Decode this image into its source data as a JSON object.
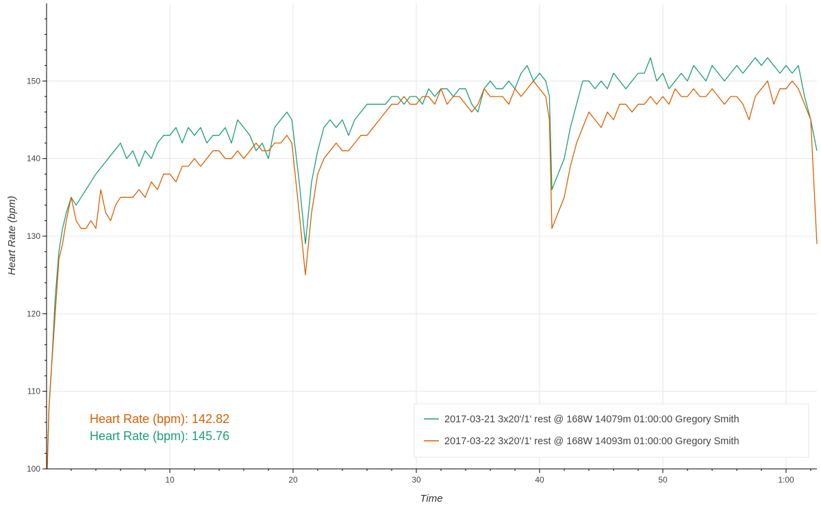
{
  "chart_data": {
    "type": "line",
    "xlabel": "Time",
    "ylabel": "Heart Rate (bpm)",
    "xlim": [
      0,
      62.5
    ],
    "ylim": [
      100,
      160
    ],
    "x_ticks": [
      {
        "value": 10,
        "label": "10"
      },
      {
        "value": 20,
        "label": "20"
      },
      {
        "value": 30,
        "label": "30"
      },
      {
        "value": 40,
        "label": "40"
      },
      {
        "value": 50,
        "label": "50"
      },
      {
        "value": 60,
        "label": "1:00"
      }
    ],
    "y_ticks": [
      {
        "value": 100,
        "label": "100"
      },
      {
        "value": 110,
        "label": "110"
      },
      {
        "value": 120,
        "label": "120"
      },
      {
        "value": 130,
        "label": "130"
      },
      {
        "value": 140,
        "label": "140"
      },
      {
        "value": 150,
        "label": "150"
      }
    ],
    "grid": true,
    "legend_position": "bottom-right",
    "series": [
      {
        "name": "2017-03-21 3x20'/1' rest @ 168W 14079m 01:00:00 Gregory Smith",
        "color": "#1b9e77",
        "average_label": "Heart Rate (bpm): 145.76",
        "points": [
          [
            0.05,
            100
          ],
          [
            0.2,
            108
          ],
          [
            0.4,
            113
          ],
          [
            0.7,
            122
          ],
          [
            1.0,
            128
          ],
          [
            1.3,
            131
          ],
          [
            1.6,
            133
          ],
          [
            2.0,
            135
          ],
          [
            2.4,
            134
          ],
          [
            2.8,
            135
          ],
          [
            3.2,
            136
          ],
          [
            3.6,
            137
          ],
          [
            4.0,
            138
          ],
          [
            4.5,
            139
          ],
          [
            5.0,
            140
          ],
          [
            5.5,
            141
          ],
          [
            6.0,
            142
          ],
          [
            6.5,
            140
          ],
          [
            7.0,
            141
          ],
          [
            7.5,
            139
          ],
          [
            8.0,
            141
          ],
          [
            8.5,
            140
          ],
          [
            9.0,
            142
          ],
          [
            9.5,
            143
          ],
          [
            10.0,
            143
          ],
          [
            10.5,
            144
          ],
          [
            11.0,
            142
          ],
          [
            11.5,
            144
          ],
          [
            12.0,
            143
          ],
          [
            12.5,
            144
          ],
          [
            13.0,
            142
          ],
          [
            13.5,
            143
          ],
          [
            14.0,
            143
          ],
          [
            14.5,
            144
          ],
          [
            15.0,
            142
          ],
          [
            15.5,
            145
          ],
          [
            16.0,
            144
          ],
          [
            16.5,
            143
          ],
          [
            17.0,
            141
          ],
          [
            17.5,
            142
          ],
          [
            18.0,
            140
          ],
          [
            18.5,
            144
          ],
          [
            19.0,
            145
          ],
          [
            19.5,
            146
          ],
          [
            19.9,
            145
          ],
          [
            20.5,
            137
          ],
          [
            21.0,
            129
          ],
          [
            21.5,
            137
          ],
          [
            22.0,
            141
          ],
          [
            22.5,
            144
          ],
          [
            23.0,
            145
          ],
          [
            23.5,
            144
          ],
          [
            24.0,
            145
          ],
          [
            24.5,
            143
          ],
          [
            25.0,
            145
          ],
          [
            25.5,
            146
          ],
          [
            26.0,
            147
          ],
          [
            26.5,
            147
          ],
          [
            27.0,
            147
          ],
          [
            27.5,
            147
          ],
          [
            28.0,
            148
          ],
          [
            28.5,
            148
          ],
          [
            29.0,
            147
          ],
          [
            29.5,
            148
          ],
          [
            30.0,
            148
          ],
          [
            30.5,
            147
          ],
          [
            31.0,
            149
          ],
          [
            31.5,
            148
          ],
          [
            32.0,
            149
          ],
          [
            32.5,
            149
          ],
          [
            33.0,
            148
          ],
          [
            33.5,
            149
          ],
          [
            34.0,
            149
          ],
          [
            34.5,
            147
          ],
          [
            35.0,
            146
          ],
          [
            35.5,
            149
          ],
          [
            36.0,
            150
          ],
          [
            36.5,
            149
          ],
          [
            37.0,
            149
          ],
          [
            37.5,
            150
          ],
          [
            38.0,
            149
          ],
          [
            38.5,
            151
          ],
          [
            39.0,
            152
          ],
          [
            39.5,
            150
          ],
          [
            40.0,
            151
          ],
          [
            40.5,
            150
          ],
          [
            40.8,
            148
          ],
          [
            41.0,
            136
          ],
          [
            42.0,
            140
          ],
          [
            42.5,
            144
          ],
          [
            43.0,
            147
          ],
          [
            43.5,
            150
          ],
          [
            44.0,
            150
          ],
          [
            44.5,
            149
          ],
          [
            45.0,
            150
          ],
          [
            45.5,
            149
          ],
          [
            46.0,
            151
          ],
          [
            46.5,
            150
          ],
          [
            47.0,
            149
          ],
          [
            47.5,
            150
          ],
          [
            48.0,
            151
          ],
          [
            48.5,
            151
          ],
          [
            49.0,
            153
          ],
          [
            49.5,
            150
          ],
          [
            50.0,
            151
          ],
          [
            50.5,
            149
          ],
          [
            51.0,
            150
          ],
          [
            51.5,
            151
          ],
          [
            52.0,
            150
          ],
          [
            52.5,
            152
          ],
          [
            53.0,
            151
          ],
          [
            53.5,
            150
          ],
          [
            54.0,
            152
          ],
          [
            54.5,
            151
          ],
          [
            55.0,
            150
          ],
          [
            55.5,
            151
          ],
          [
            56.0,
            152
          ],
          [
            56.5,
            151
          ],
          [
            57.0,
            152
          ],
          [
            57.5,
            153
          ],
          [
            58.0,
            152
          ],
          [
            58.5,
            153
          ],
          [
            59.0,
            152
          ],
          [
            59.5,
            151
          ],
          [
            60.0,
            152
          ],
          [
            60.5,
            151
          ],
          [
            61.0,
            152
          ],
          [
            61.5,
            148
          ],
          [
            62.0,
            145
          ],
          [
            62.5,
            141
          ]
        ]
      },
      {
        "name": "2017-03-22 3x20'/1' rest @ 168W 14093m 01:00:00 Gregory Smith",
        "color": "#d95f02",
        "average_label": "Heart Rate (bpm): 142.82",
        "points": [
          [
            0.05,
            100
          ],
          [
            0.2,
            108
          ],
          [
            0.4,
            113
          ],
          [
            0.7,
            120
          ],
          [
            1.0,
            127
          ],
          [
            1.3,
            129
          ],
          [
            1.6,
            132
          ],
          [
            2.0,
            135
          ],
          [
            2.4,
            132
          ],
          [
            2.8,
            131
          ],
          [
            3.2,
            131
          ],
          [
            3.6,
            132
          ],
          [
            4.0,
            131
          ],
          [
            4.4,
            136
          ],
          [
            4.8,
            133
          ],
          [
            5.2,
            132
          ],
          [
            5.6,
            134
          ],
          [
            6.0,
            135
          ],
          [
            6.5,
            135
          ],
          [
            7.0,
            135
          ],
          [
            7.5,
            136
          ],
          [
            8.0,
            135
          ],
          [
            8.5,
            137
          ],
          [
            9.0,
            136
          ],
          [
            9.5,
            138
          ],
          [
            10.0,
            138
          ],
          [
            10.5,
            137
          ],
          [
            11.0,
            139
          ],
          [
            11.5,
            139
          ],
          [
            12.0,
            140
          ],
          [
            12.5,
            139
          ],
          [
            13.0,
            140
          ],
          [
            13.5,
            141
          ],
          [
            14.0,
            141
          ],
          [
            14.5,
            140
          ],
          [
            15.0,
            140
          ],
          [
            15.5,
            141
          ],
          [
            16.0,
            140
          ],
          [
            16.5,
            141
          ],
          [
            17.0,
            142
          ],
          [
            17.5,
            141
          ],
          [
            18.0,
            141
          ],
          [
            18.5,
            142
          ],
          [
            19.0,
            142
          ],
          [
            19.5,
            143
          ],
          [
            19.9,
            142
          ],
          [
            20.5,
            133
          ],
          [
            21.0,
            125
          ],
          [
            21.5,
            133
          ],
          [
            22.0,
            138
          ],
          [
            22.5,
            140
          ],
          [
            23.0,
            141
          ],
          [
            23.5,
            142
          ],
          [
            24.0,
            141
          ],
          [
            24.5,
            141
          ],
          [
            25.0,
            142
          ],
          [
            25.5,
            143
          ],
          [
            26.0,
            143
          ],
          [
            26.5,
            144
          ],
          [
            27.0,
            145
          ],
          [
            27.5,
            146
          ],
          [
            28.0,
            147
          ],
          [
            28.5,
            147
          ],
          [
            29.0,
            148
          ],
          [
            29.5,
            147
          ],
          [
            30.0,
            147
          ],
          [
            30.5,
            148
          ],
          [
            31.0,
            148
          ],
          [
            31.5,
            147
          ],
          [
            32.0,
            149
          ],
          [
            32.5,
            147
          ],
          [
            33.0,
            148
          ],
          [
            33.5,
            148
          ],
          [
            34.0,
            147
          ],
          [
            34.5,
            146
          ],
          [
            35.0,
            147
          ],
          [
            35.5,
            149
          ],
          [
            36.0,
            148
          ],
          [
            36.5,
            148
          ],
          [
            37.0,
            148
          ],
          [
            37.5,
            147
          ],
          [
            38.0,
            149
          ],
          [
            38.5,
            148
          ],
          [
            39.0,
            149
          ],
          [
            39.5,
            150
          ],
          [
            40.0,
            149
          ],
          [
            40.5,
            148
          ],
          [
            40.8,
            145
          ],
          [
            41.0,
            131
          ],
          [
            42.0,
            135
          ],
          [
            42.5,
            139
          ],
          [
            43.0,
            142
          ],
          [
            43.5,
            144
          ],
          [
            44.0,
            146
          ],
          [
            44.5,
            145
          ],
          [
            45.0,
            144
          ],
          [
            45.5,
            146
          ],
          [
            46.0,
            145
          ],
          [
            46.5,
            147
          ],
          [
            47.0,
            147
          ],
          [
            47.5,
            146
          ],
          [
            48.0,
            147
          ],
          [
            48.5,
            147
          ],
          [
            49.0,
            148
          ],
          [
            49.5,
            147
          ],
          [
            50.0,
            148
          ],
          [
            50.5,
            147
          ],
          [
            51.0,
            149
          ],
          [
            51.5,
            148
          ],
          [
            52.0,
            148
          ],
          [
            52.5,
            149
          ],
          [
            53.0,
            148
          ],
          [
            53.5,
            148
          ],
          [
            54.0,
            149
          ],
          [
            54.5,
            148
          ],
          [
            55.0,
            147
          ],
          [
            55.5,
            148
          ],
          [
            56.0,
            148
          ],
          [
            56.5,
            147
          ],
          [
            57.0,
            145
          ],
          [
            57.5,
            148
          ],
          [
            58.0,
            149
          ],
          [
            58.5,
            150
          ],
          [
            59.0,
            147
          ],
          [
            59.5,
            149
          ],
          [
            60.0,
            149
          ],
          [
            60.5,
            150
          ],
          [
            61.0,
            149
          ],
          [
            61.5,
            147
          ],
          [
            62.0,
            145
          ],
          [
            62.5,
            129
          ]
        ]
      }
    ]
  }
}
